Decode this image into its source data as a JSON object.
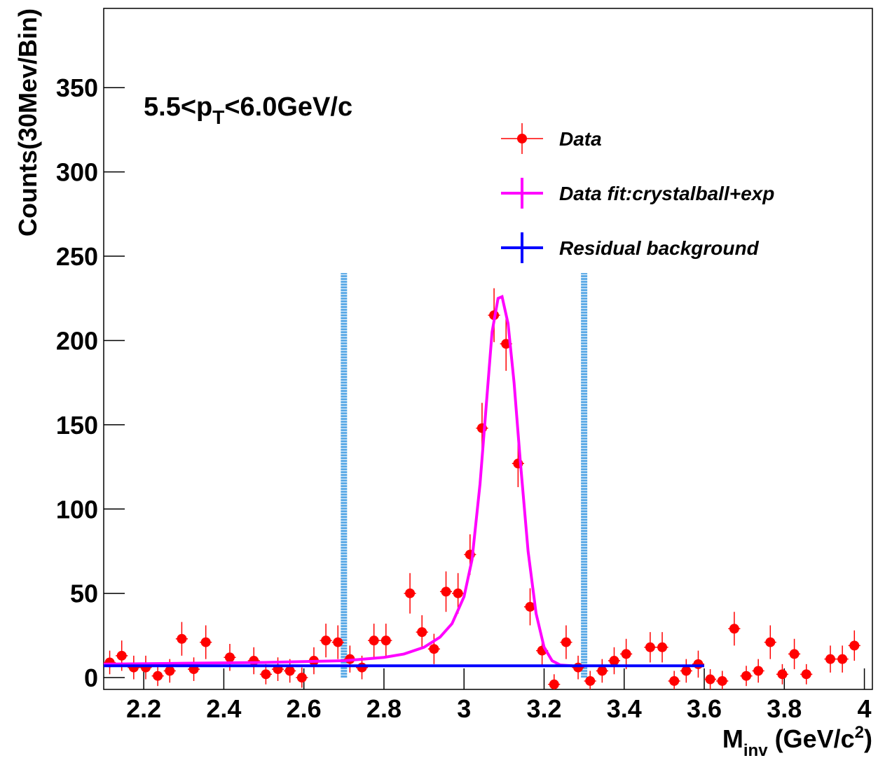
{
  "chart_data": {
    "type": "scatter",
    "annotation": [
      "5.5<p",
      "T",
      "<6.0GeV/c"
    ],
    "x_label": [
      "M",
      "inv",
      " (GeV/c",
      "2",
      ")"
    ],
    "y_label": "Counts(30Mev/Bin)",
    "xlim": [
      2.1,
      4.02
    ],
    "ylim": [
      -7,
      397
    ],
    "xticks": [
      2.2,
      2.4,
      2.6,
      2.8,
      3,
      3.2,
      3.4,
      3.6,
      3.8,
      4
    ],
    "yticks": [
      0,
      50,
      100,
      150,
      200,
      250,
      300,
      350
    ],
    "bin_width": 0.03,
    "series": [
      {
        "name": "Data",
        "color": "#ff0000",
        "style": "points",
        "x": [
          2.115,
          2.145,
          2.175,
          2.205,
          2.235,
          2.265,
          2.295,
          2.325,
          2.355,
          2.415,
          2.475,
          2.505,
          2.535,
          2.565,
          2.595,
          2.625,
          2.655,
          2.685,
          2.715,
          2.745,
          2.775,
          2.805,
          2.865,
          2.895,
          2.925,
          2.955,
          2.985,
          3.015,
          3.045,
          3.075,
          3.105,
          3.135,
          3.165,
          3.195,
          3.225,
          3.255,
          3.285,
          3.315,
          3.345,
          3.375,
          3.405,
          3.465,
          3.495,
          3.525,
          3.555,
          3.585,
          3.615,
          3.645,
          3.675,
          3.705,
          3.735,
          3.765,
          3.795,
          3.825,
          3.855,
          3.915,
          3.945,
          3.975
        ],
        "values": [
          9,
          13,
          6,
          6,
          1,
          4,
          23,
          5,
          21,
          12,
          10,
          2,
          5,
          4,
          0,
          10,
          22,
          21,
          11,
          6,
          22,
          22,
          50,
          27,
          17,
          51,
          50,
          73,
          148,
          215,
          198,
          127,
          42,
          16,
          -4,
          21,
          6,
          -2,
          4,
          10,
          14,
          18,
          18,
          -2,
          4,
          8,
          -1,
          -2,
          29,
          1,
          4,
          21,
          2,
          14,
          2,
          11,
          11,
          19
        ],
        "errors": [
          7,
          9,
          7,
          7,
          6,
          7,
          10,
          7,
          10,
          8,
          8,
          6,
          7,
          7,
          6,
          8,
          10,
          10,
          8,
          7,
          10,
          10,
          12,
          10,
          9,
          12,
          12,
          12,
          15,
          16,
          16,
          14,
          11,
          9,
          6,
          10,
          7,
          6,
          7,
          8,
          9,
          9,
          9,
          6,
          7,
          8,
          6,
          6,
          10,
          6,
          7,
          10,
          6,
          9,
          6,
          8,
          8,
          9
        ]
      },
      {
        "name": "Data fit:crystalball+exp",
        "color": "#ff00ff",
        "style": "line",
        "x": [
          2.1,
          2.3,
          2.5,
          2.7,
          2.8,
          2.85,
          2.9,
          2.94,
          2.97,
          3.0,
          3.02,
          3.04,
          3.055,
          3.07,
          3.085,
          3.095,
          3.11,
          3.125,
          3.14,
          3.16,
          3.18,
          3.2,
          3.22,
          3.24,
          3.27
        ],
        "values": [
          8,
          8.5,
          9,
          10,
          12,
          14,
          18,
          24,
          32,
          48,
          70,
          115,
          160,
          205,
          225,
          226,
          210,
          175,
          130,
          75,
          38,
          18,
          10,
          7.5,
          7
        ]
      },
      {
        "name": "Residual background",
        "color": "#0000ff",
        "style": "line",
        "x": [
          2.1,
          3.6
        ],
        "values": [
          7,
          7
        ]
      }
    ],
    "vlines": {
      "color": "#5aa9e6",
      "x": [
        2.7,
        3.3
      ],
      "top": 240
    }
  }
}
